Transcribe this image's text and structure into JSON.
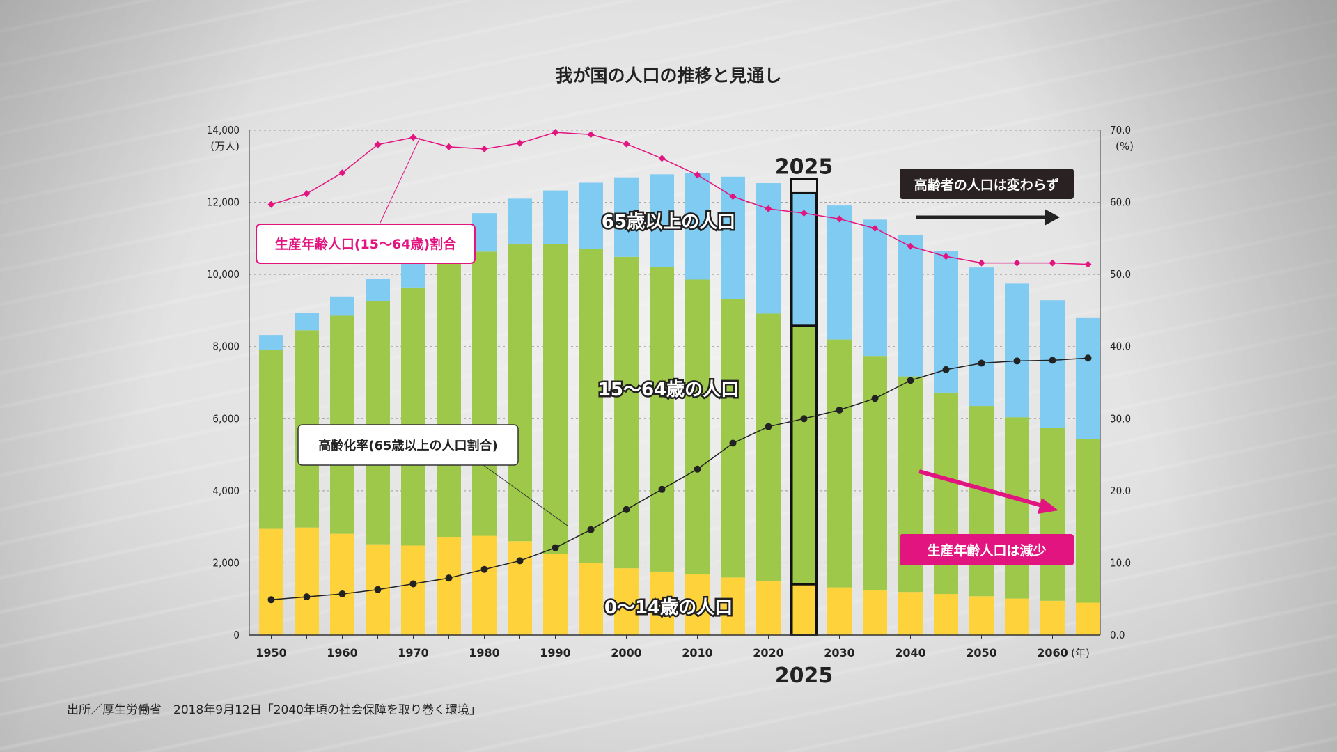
{
  "chart_data": {
    "type": "bar",
    "stacked": true,
    "title": "我が国の人口の推移と見通し",
    "y_left_label": [
      "14,000",
      "(万人)"
    ],
    "y_right_label": [
      "70.0",
      "(%)"
    ],
    "x_unit": "(年)",
    "ylim_left": [
      0,
      14000
    ],
    "ylim_right": [
      0,
      70
    ],
    "y_left_ticks": [
      "0",
      "2,000",
      "4,000",
      "6,000",
      "8,000",
      "10,000",
      "12,000"
    ],
    "y_right_ticks": [
      "0.0",
      "10.0",
      "20.0",
      "30.0",
      "40.0",
      "50.0",
      "60.0"
    ],
    "categories": [
      "1950",
      "1955",
      "1960",
      "1965",
      "1970",
      "1975",
      "1980",
      "1985",
      "1990",
      "1995",
      "2000",
      "2005",
      "2010",
      "2015",
      "2020",
      "2025",
      "2030",
      "2035",
      "2040",
      "2045",
      "2050",
      "2055",
      "2060",
      "2065"
    ],
    "x_tick_labels": [
      "1950",
      "",
      "1960",
      "",
      "1970",
      "",
      "1980",
      "",
      "1990",
      "",
      "2000",
      "",
      "2010",
      "",
      "2020",
      "",
      "2030",
      "",
      "2040",
      "",
      "2050",
      "",
      "2060",
      ""
    ],
    "series": [
      {
        "name": "0〜14歳の人口",
        "color": "#fdd23b",
        "values": [
          2943,
          2980,
          2807,
          2517,
          2482,
          2722,
          2751,
          2603,
          2249,
          2001,
          1851,
          1759,
          1684,
          1595,
          1507,
          1407,
          1321,
          1246,
          1194,
          1138,
          1077,
          1012,
          951,
          898
        ]
      },
      {
        "name": "15〜64歳の人口",
        "color": "#9dc84a",
        "values": [
          4966,
          5473,
          6047,
          6744,
          7157,
          7581,
          7883,
          8251,
          8590,
          8716,
          8638,
          8442,
          8174,
          7728,
          7406,
          7170,
          6875,
          6494,
          5978,
          5584,
          5275,
          5028,
          4793,
          4529
        ]
      },
      {
        "name": "65歳以上の人口",
        "color": "#80cbf2",
        "values": [
          411,
          475,
          535,
          624,
          739,
          887,
          1065,
          1247,
          1489,
          1826,
          2204,
          2576,
          2948,
          3387,
          3619,
          3677,
          3716,
          3782,
          3921,
          3919,
          3841,
          3704,
          3540,
          3381
        ]
      }
    ],
    "lines": [
      {
        "name": "生産年齢人口(15〜64歳)割合",
        "color": "#e2147f",
        "axis": "right",
        "values": [
          59.7,
          61.2,
          64.1,
          68.0,
          69.0,
          67.7,
          67.4,
          68.2,
          69.7,
          69.4,
          68.1,
          66.1,
          63.8,
          60.8,
          59.1,
          58.5,
          57.7,
          56.4,
          53.9,
          52.5,
          51.6,
          51.6,
          51.6,
          51.4
        ]
      },
      {
        "name": "高齢化率(65歳以上の人口割合)",
        "color": "#222222",
        "axis": "right",
        "values": [
          4.9,
          5.3,
          5.7,
          6.3,
          7.1,
          7.9,
          9.1,
          10.3,
          12.1,
          14.6,
          17.4,
          20.2,
          23.0,
          26.6,
          28.9,
          30.0,
          31.2,
          32.8,
          35.3,
          36.8,
          37.7,
          38.0,
          38.1,
          38.4
        ]
      }
    ],
    "highlight_category": "2025",
    "highlight_label": "2025",
    "bar_labels": {
      "senior": "65歳以上の人口",
      "working": "15〜64歳の人口",
      "child": "0〜14歳の人口"
    },
    "callouts": {
      "working_ratio": "生産年齢人口(15〜64歳)割合",
      "aging_rate": "高齢化率(65歳以上の人口割合)",
      "senior_flat": "高齢者の人口は変わらず",
      "working_decline": "生産年齢人口は減少"
    }
  },
  "source": "出所／厚生労働省　2018年9月12日「2040年頃の社会保障を取り巻く環境」",
  "colors": {
    "child": "#fdd23b",
    "working": "#9dc84a",
    "senior": "#80cbf2",
    "magenta": "#e2147f",
    "dark": "#222222"
  }
}
